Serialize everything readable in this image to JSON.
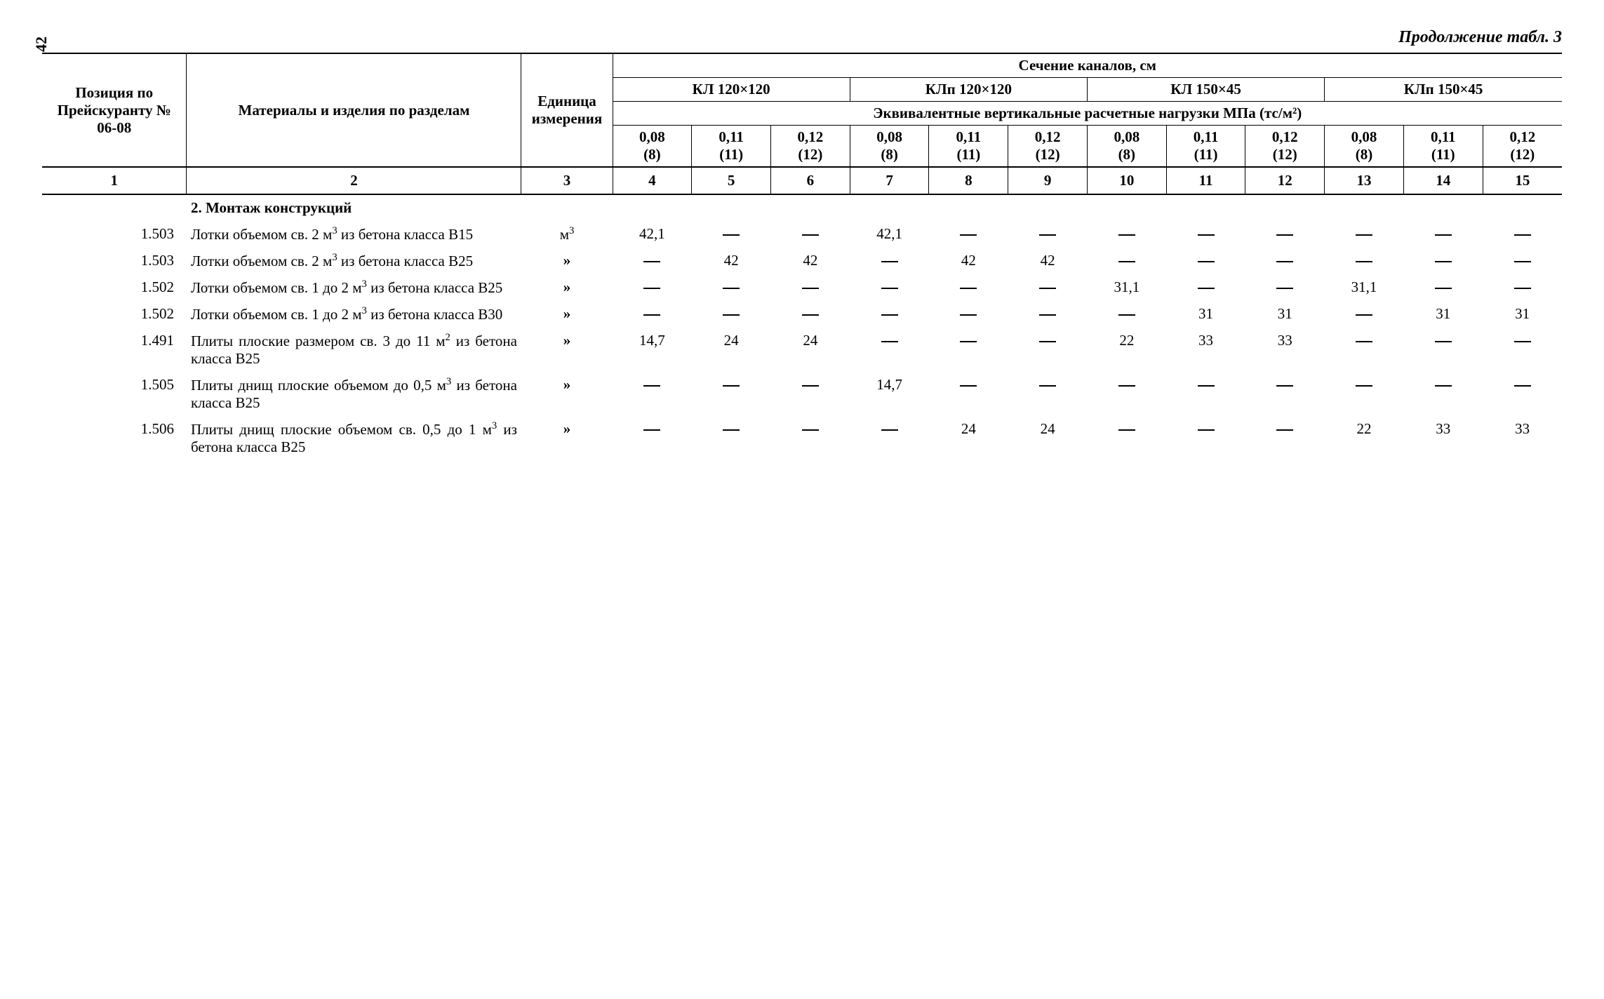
{
  "page_number": "42",
  "continuation": "Продолжение табл. 3",
  "header": {
    "pos": "Позиция по Прейску­ранту № 06-08",
    "mat": "Материалы и изделия по разделам",
    "unit": "Еди­ница изме­рения",
    "sections_title": "Сечение каналов, см",
    "groups": [
      "КЛ 120×120",
      "КЛп 120×120",
      "КЛ 150×45",
      "КЛп 150×45"
    ],
    "eq_title": "Эквивалентные вертикальные расчетные нагрузки МПа (тс/м²)",
    "loads": [
      "0,08 (8)",
      "0,11 (11)",
      "0,12 (12)"
    ]
  },
  "colnums": [
    "1",
    "2",
    "3",
    "4",
    "5",
    "6",
    "7",
    "8",
    "9",
    "10",
    "11",
    "12",
    "13",
    "14",
    "15"
  ],
  "section_heading": "2. Монтаж конструкций",
  "rows": [
    {
      "pos": "1.503",
      "mat": "Лотки объемом св. 2 м³ из бетона класса В15",
      "unit": "м³",
      "vals": [
        "42,1",
        "—",
        "—",
        "42,1",
        "—",
        "—",
        "—",
        "—",
        "—",
        "—",
        "—",
        "—"
      ]
    },
    {
      "pos": "1.503",
      "mat": "Лотки объемом св. 2 м³ из бетона класса В25",
      "unit": "»",
      "vals": [
        "—",
        "42",
        "42",
        "—",
        "42",
        "42",
        "—",
        "—",
        "—",
        "—",
        "—",
        "—"
      ]
    },
    {
      "pos": "1.502",
      "mat": "Лотки объемом св. 1 до 2 м³ из бетона класса В25",
      "unit": "»",
      "vals": [
        "—",
        "—",
        "—",
        "—",
        "—",
        "—",
        "31,1",
        "—",
        "—",
        "31,1",
        "—",
        "—"
      ]
    },
    {
      "pos": "1.502",
      "mat": "Лотки объемом св. 1 до 2 м³ из бетона класса В30",
      "unit": "»",
      "vals": [
        "—",
        "—",
        "—",
        "—",
        "—",
        "—",
        "—",
        "31",
        "31",
        "—",
        "31",
        "31"
      ]
    },
    {
      "pos": "1.491",
      "mat": "Плиты плоские разме­ром св. 3 до 11 м² из бетона класса В25",
      "unit": "»",
      "vals": [
        "14,7",
        "24",
        "24",
        "—",
        "—",
        "—",
        "22",
        "33",
        "33",
        "—",
        "—",
        "—"
      ]
    },
    {
      "pos": "1.505",
      "mat": "Плиты днищ плоские объемом до 0,5 м³ из бетона класса В25",
      "unit": "»",
      "vals": [
        "—",
        "—",
        "—",
        "14,7",
        "—",
        "—",
        "—",
        "—",
        "—",
        "—",
        "—",
        "—"
      ]
    },
    {
      "pos": "1.506",
      "mat": "Плиты днищ плоские объемом св. 0,5 до 1 м³ из бетона класса В25",
      "unit": "»",
      "vals": [
        "—",
        "—",
        "—",
        "—",
        "24",
        "24",
        "—",
        "—",
        "—",
        "22",
        "33",
        "33"
      ]
    }
  ]
}
